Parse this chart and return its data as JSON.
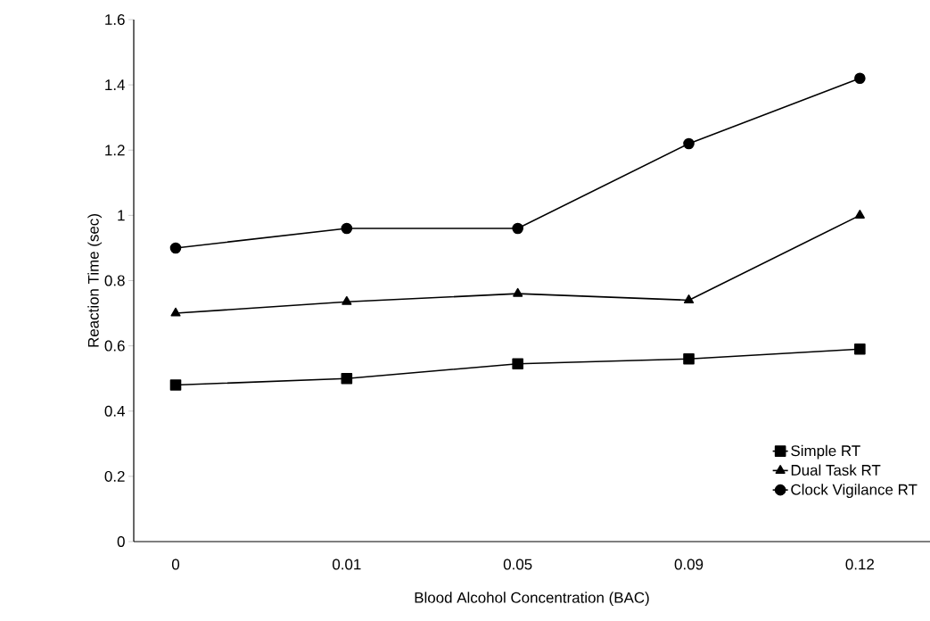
{
  "chart_data": {
    "type": "line",
    "xlabel": "Blood Alcohol Concentration (BAC)",
    "ylabel": "Reaction Time (sec)",
    "categories": [
      "0",
      "0.01",
      "0.05",
      "0.09",
      "0.12"
    ],
    "series": [
      {
        "name": "Simple RT",
        "color": "#000000",
        "marker": "square",
        "values": [
          0.48,
          0.5,
          0.545,
          0.56,
          0.59
        ]
      },
      {
        "name": "Dual Task RT",
        "color": "#000000",
        "marker": "triangle",
        "values": [
          0.7,
          0.735,
          0.76,
          0.74,
          1.0
        ]
      },
      {
        "name": "Clock Vigilance RT",
        "color": "#000000",
        "marker": "circle",
        "values": [
          0.9,
          0.96,
          0.96,
          1.22,
          1.42
        ]
      }
    ],
    "ylim": [
      0,
      1.6
    ],
    "yticks": [
      0,
      0.2,
      0.4,
      0.6,
      0.8,
      1,
      1.2,
      1.4,
      1.6
    ],
    "legend": "bottom right",
    "grid": false,
    "line_style": "solid"
  }
}
